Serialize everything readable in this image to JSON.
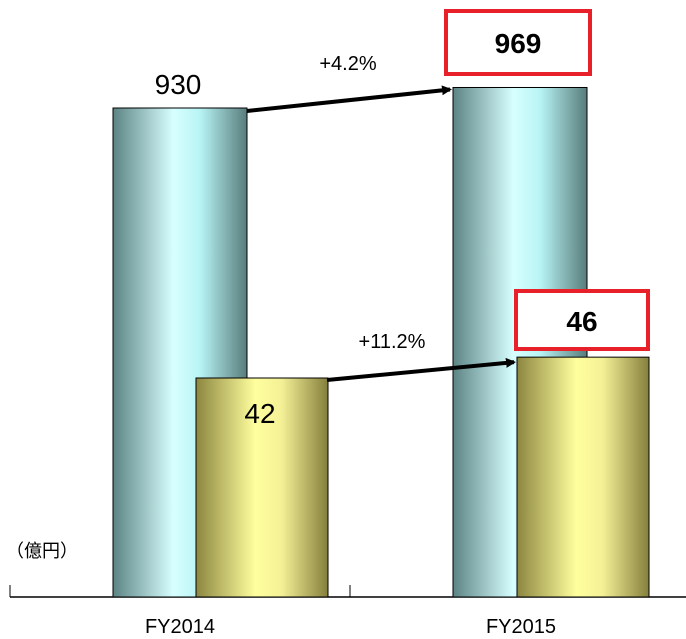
{
  "chart_data": {
    "type": "bar",
    "categories": [
      "FY2014",
      "FY2015"
    ],
    "unit_label": "（億円）",
    "series": [
      {
        "values": [
          930,
          969
        ],
        "color": "#8fc4c8"
      },
      {
        "values": [
          42,
          46
        ],
        "color": "#d8d480"
      }
    ],
    "value_labels": [
      [
        "930",
        "969"
      ],
      [
        "42",
        "46"
      ]
    ],
    "growth_labels": [
      "+4.2%",
      "+11.2%"
    ],
    "highlight_color": "#e8202a"
  }
}
